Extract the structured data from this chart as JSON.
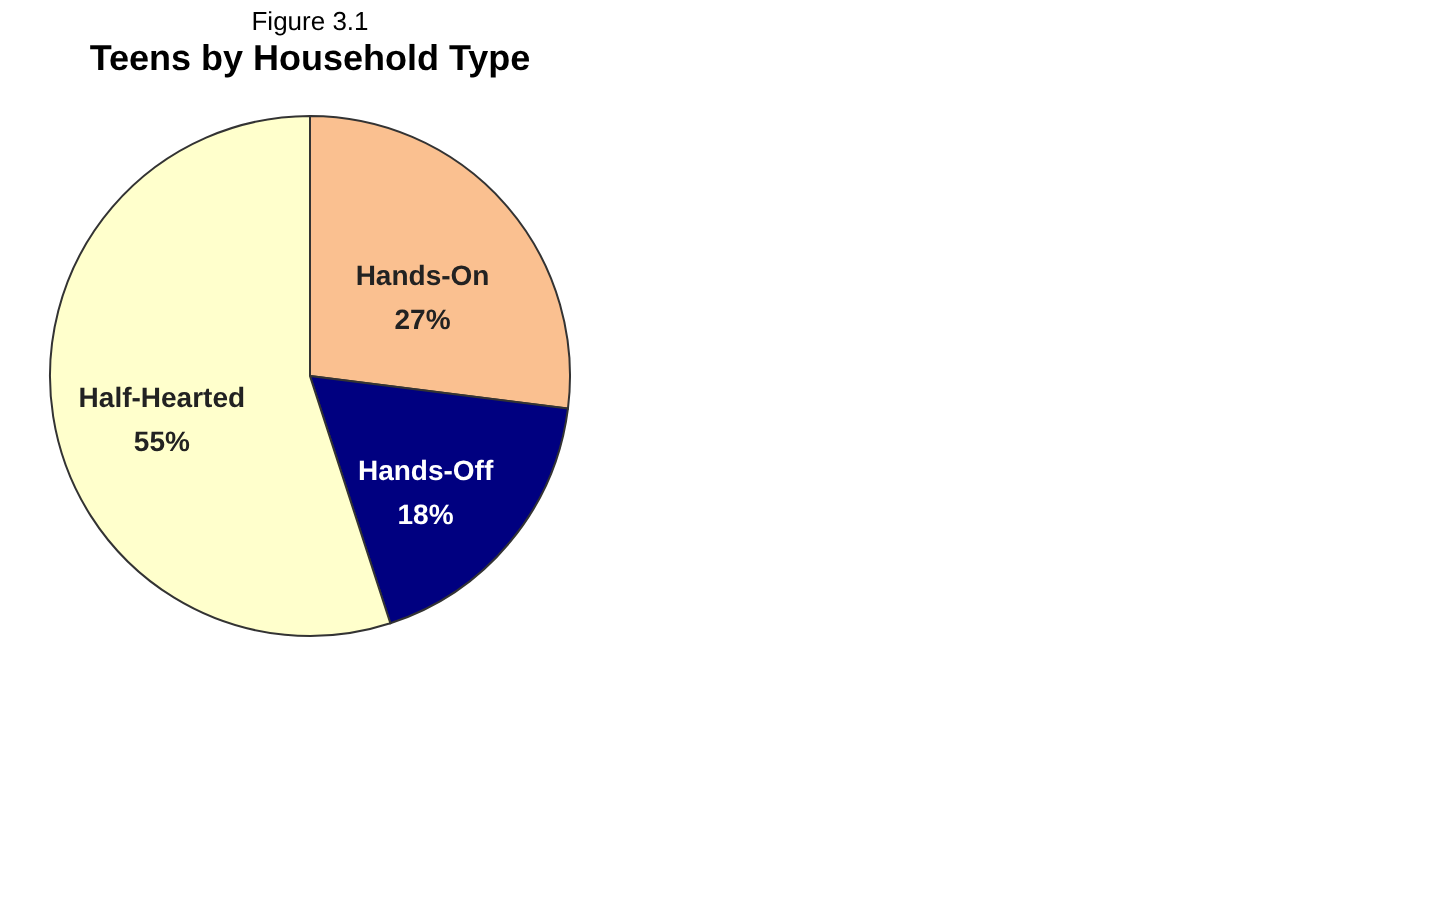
{
  "chart_data": {
    "type": "pie",
    "title": "Figure 3.1",
    "subtitle": "Teens by Household Type",
    "categories": [
      "Hands-On",
      "Hands-Off",
      "Half-Hearted"
    ],
    "values": [
      27,
      18,
      55
    ],
    "colors": [
      "#fac090",
      "#000080",
      "#ffffcc"
    ],
    "value_labels": [
      "27%",
      "18%",
      "55%"
    ],
    "legend": false
  }
}
